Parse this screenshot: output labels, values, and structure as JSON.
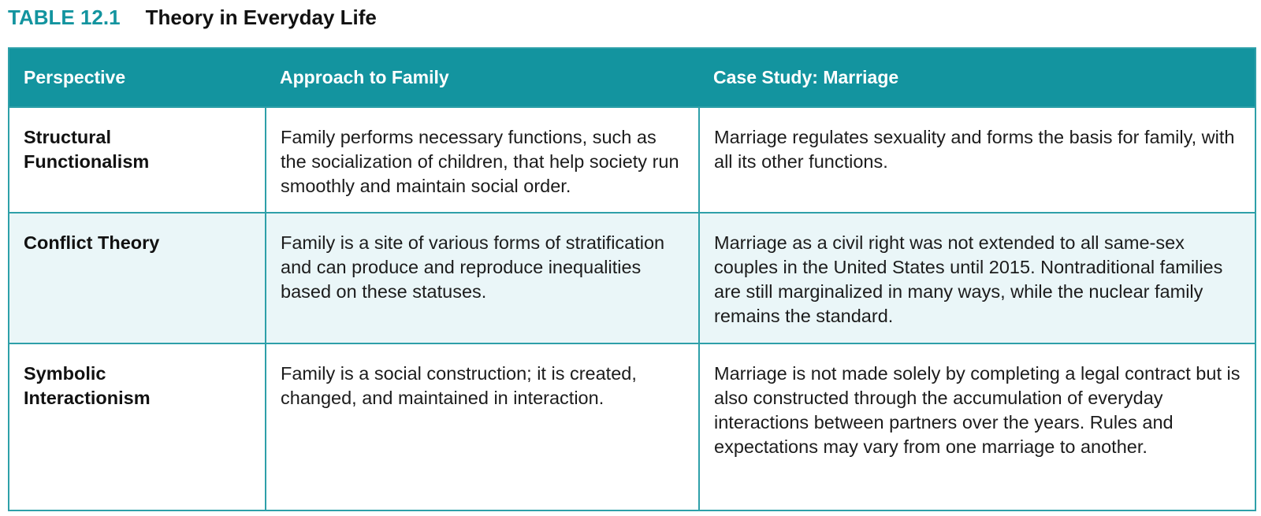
{
  "caption": {
    "label": "TABLE 12.1",
    "title": "Theory in Everyday Life"
  },
  "colors": {
    "accent": "#13949f",
    "border": "#2ea0a9",
    "row_tint": "#eaf6f8"
  },
  "table": {
    "headers": [
      "Perspective",
      "Approach to Family",
      "Case Study: Marriage"
    ],
    "rows": [
      {
        "perspective_line1": "Structural",
        "perspective_line2": "Functionalism",
        "approach": "Family performs necessary functions, such as the socialization of children, that help society run smoothly and maintain social order.",
        "case": "Marriage regulates sexuality and forms the basis for family, with all its other functions."
      },
      {
        "perspective_line1": "Conflict Theory",
        "perspective_line2": "",
        "approach": "Family is a site of various forms of stratification and can produce and reproduce inequalities based on these statuses.",
        "case": "Marriage as a civil right was not extended to all same-sex couples in the United States until 2015. Nontraditional families are still marginalized in many ways, while the nuclear family remains the standard."
      },
      {
        "perspective_line1": "Symbolic",
        "perspective_line2": "Interactionism",
        "approach": "Family is a social construction; it is created, changed, and maintained in interaction.",
        "case": "Marriage is not made solely by completing a legal contract but is also constructed through the accumulation of everyday interactions between partners over the years. Rules and expectations may vary from one marriage to another."
      }
    ]
  }
}
